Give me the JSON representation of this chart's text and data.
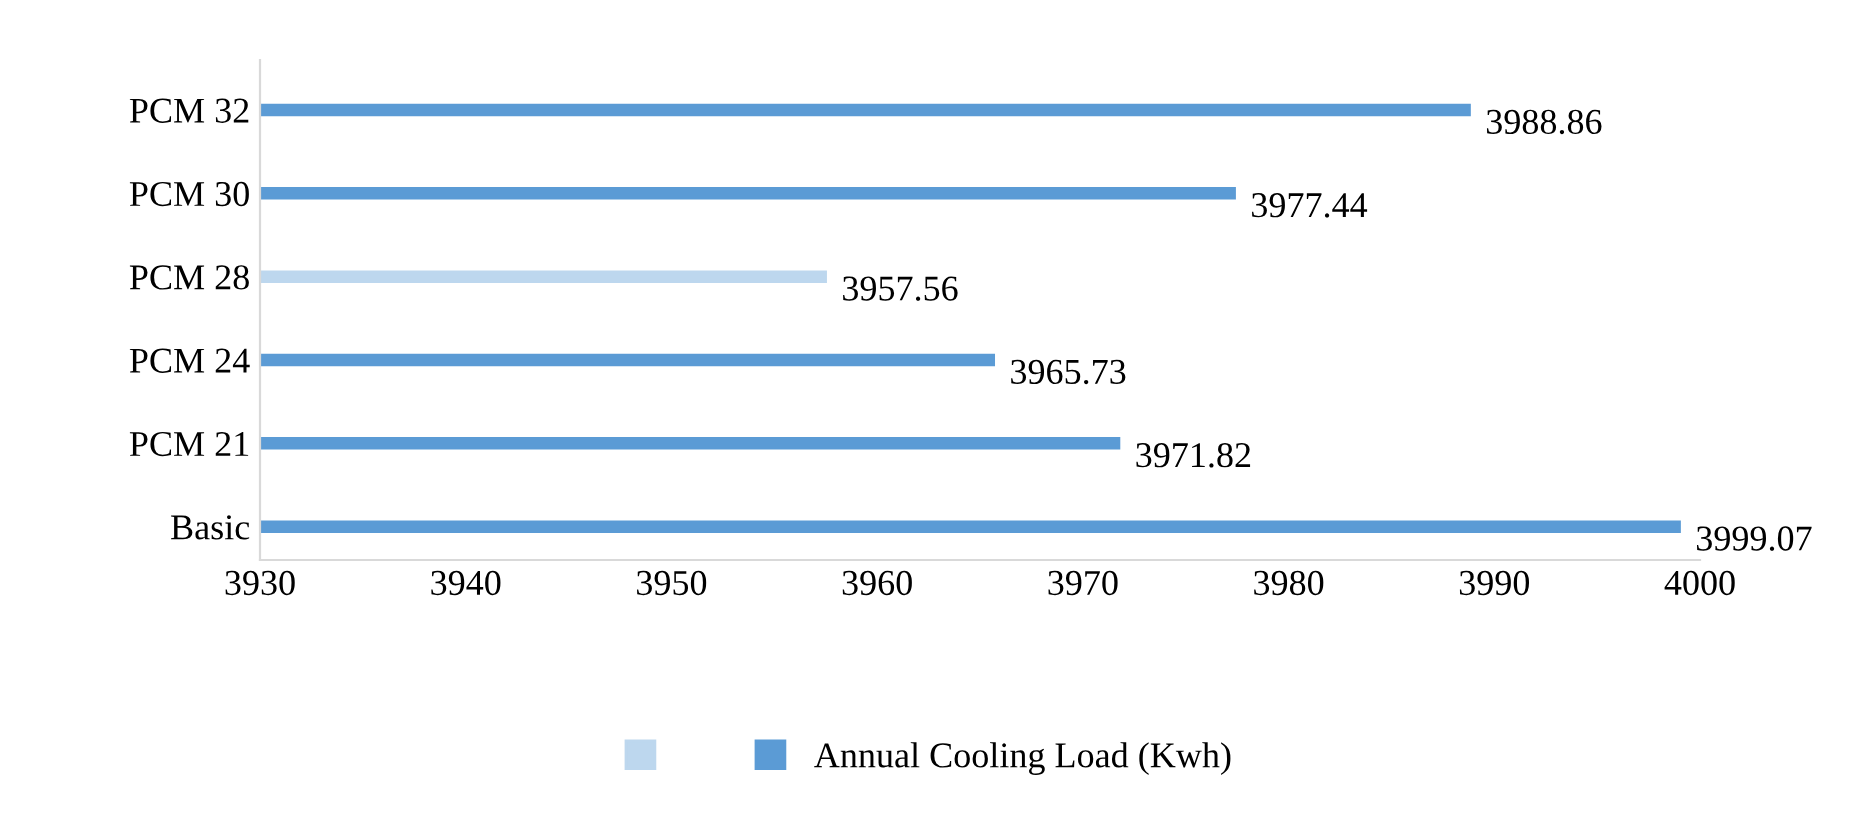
{
  "chart_data": {
    "type": "bar",
    "orientation": "horizontal",
    "categories": [
      "PCM 32",
      "PCM 30",
      "PCM 28",
      "PCM 24",
      "PCM 21",
      "Basic"
    ],
    "series": [
      {
        "name": "Annual Cooling Load (Kwh)",
        "color": "#5b9bd5",
        "colors": [
          "#5b9bd5",
          "#5b9bd5",
          "#bdd7ee",
          "#5b9bd5",
          "#5b9bd5",
          "#5b9bd5"
        ],
        "values": [
          3988.86,
          3977.44,
          3957.56,
          3965.73,
          3971.82,
          3999.07
        ]
      }
    ],
    "xlim": [
      3930,
      4000
    ],
    "xticks": [
      3930,
      3940,
      3950,
      3960,
      3970,
      3980,
      3990,
      4000
    ],
    "data_labels": true,
    "grid": false,
    "legend": "bottom"
  }
}
